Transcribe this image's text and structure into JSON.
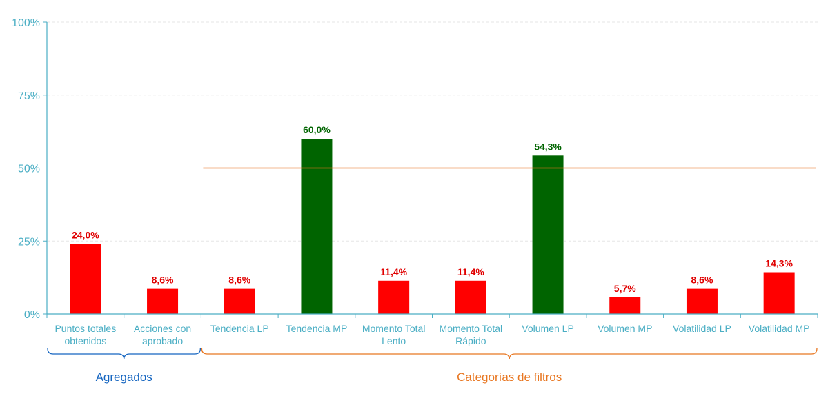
{
  "chart_data": {
    "type": "bar",
    "categories": [
      [
        "Puntos totales",
        "obtenidos"
      ],
      [
        "Acciones con",
        "aprobado"
      ],
      [
        "Tendencia LP"
      ],
      [
        "Tendencia MP"
      ],
      [
        "Momento Total",
        "Lento"
      ],
      [
        "Momento Total",
        "Rápido"
      ],
      [
        "Volumen LP"
      ],
      [
        "Volumen MP"
      ],
      [
        "Volatilidad LP"
      ],
      [
        "Volatilidad MP"
      ]
    ],
    "values": [
      24.0,
      8.6,
      8.6,
      60.0,
      11.4,
      11.4,
      54.3,
      5.7,
      8.6,
      14.3
    ],
    "data_labels": [
      "24,0%",
      "8,6%",
      "8,6%",
      "60,0%",
      "11,4%",
      "11,4%",
      "54,3%",
      "5,7%",
      "8,6%",
      "14,3%"
    ],
    "bar_colors": [
      "#ff0000",
      "#ff0000",
      "#ff0000",
      "#006400",
      "#ff0000",
      "#ff0000",
      "#006400",
      "#ff0000",
      "#ff0000",
      "#ff0000"
    ],
    "y_ticks": [
      {
        "value": 0,
        "label": "0%"
      },
      {
        "value": 25,
        "label": "25%"
      },
      {
        "value": 50,
        "label": "50%"
      },
      {
        "value": 75,
        "label": "75%"
      },
      {
        "value": 100,
        "label": "100%"
      }
    ],
    "ylim": [
      0,
      100
    ],
    "threshold": {
      "value": 50,
      "from_category": 2,
      "to_category": 9,
      "color": "#e87722"
    },
    "groups": [
      {
        "label": "Agregados",
        "from_category": 0,
        "to_category": 1,
        "color": "#1565c0"
      },
      {
        "label": "Categorías de filtros",
        "from_category": 2,
        "to_category": 9,
        "color": "#e87722"
      }
    ],
    "axis_color": "#4aaec4",
    "grid": true
  }
}
